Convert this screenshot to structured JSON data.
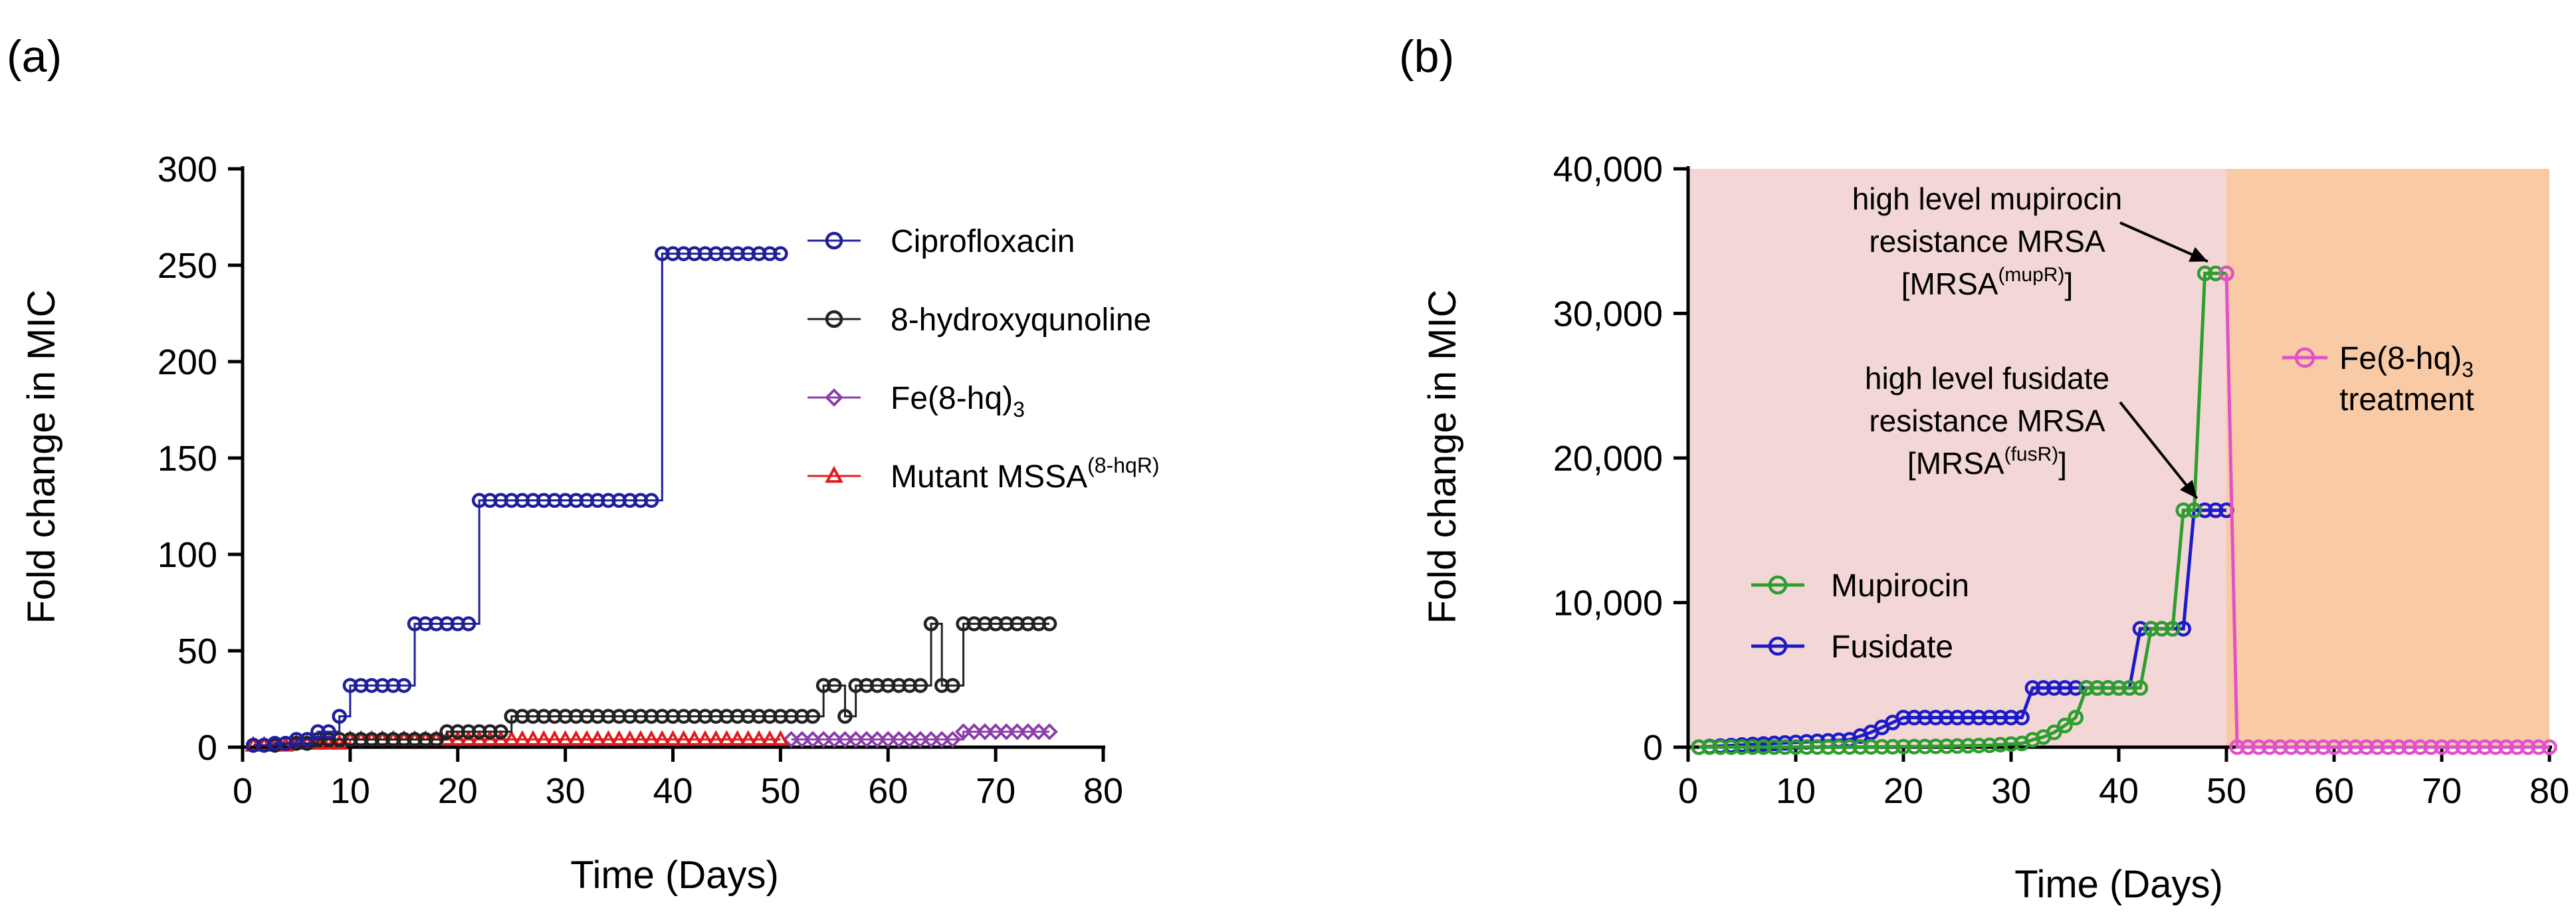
{
  "panels": {
    "a": {
      "label": "(a)"
    },
    "b": {
      "label": "(b)"
    }
  },
  "chart_data": [
    {
      "type": "line",
      "panel": "(a)",
      "xlabel": "Time (Days)",
      "ylabel": "Fold change in MIC",
      "xlim": [
        0,
        80
      ],
      "ylim": [
        0,
        300
      ],
      "xticks": [
        "0",
        "10",
        "20",
        "30",
        "40",
        "50",
        "60",
        "70",
        "80"
      ],
      "yticks": [
        "0",
        "50",
        "100",
        "150",
        "200",
        "250",
        "300"
      ],
      "legend_position": "top-right",
      "series": [
        {
          "name": "Ciprofloxacin",
          "color": "#1f1f9c",
          "marker": "circle",
          "steps": [
            [
              1,
              1
            ],
            [
              3,
              2
            ],
            [
              5,
              4
            ],
            [
              7,
              8
            ],
            [
              9,
              16
            ],
            [
              10,
              32
            ],
            [
              16,
              64
            ],
            [
              22,
              128
            ],
            [
              39,
              256
            ],
            [
              50,
              256
            ]
          ]
        },
        {
          "name": "8-hydroxyqunoline",
          "color": "#222222",
          "marker": "circle",
          "steps": [
            [
              1,
              1
            ],
            [
              4,
              2
            ],
            [
              7,
              4
            ],
            [
              19,
              8
            ],
            [
              25,
              16
            ],
            [
              54,
              32
            ],
            [
              56,
              16
            ],
            [
              57,
              32
            ],
            [
              64,
              64
            ],
            [
              65,
              32
            ],
            [
              67,
              64
            ],
            [
              75,
              64
            ]
          ]
        },
        {
          "name": "Fe(8-hq)3",
          "name_main": "Fe(8-hq)",
          "name_sub": "3",
          "color": "#8b3fa8",
          "marker": "diamond",
          "steps": [
            [
              51,
              4
            ],
            [
              67,
              8
            ],
            [
              75,
              8
            ]
          ]
        },
        {
          "name": "Mutant MSSA(8-hqR)",
          "name_main": "Mutant MSSA",
          "name_sup": "(8-hqR)",
          "color": "#e31a1c",
          "marker": "triangle",
          "steps": [
            [
              1,
              1
            ],
            [
              5,
              2
            ],
            [
              10,
              4
            ],
            [
              50,
              4
            ]
          ]
        }
      ]
    },
    {
      "type": "line",
      "panel": "(b)",
      "xlabel": "Time (Days)",
      "ylabel": "Fold change in MIC",
      "xlim": [
        0,
        80
      ],
      "ylim": [
        0,
        40000
      ],
      "xticks": [
        "0",
        "10",
        "20",
        "30",
        "40",
        "50",
        "60",
        "70",
        "80"
      ],
      "yticks": [
        "0",
        "10,000",
        "20,000",
        "30,000",
        "40,000"
      ],
      "shaded_regions": [
        {
          "from": 0,
          "to": 50,
          "color": "#f3d6d6"
        },
        {
          "from": 50,
          "to": 80,
          "color": "#f8caa6"
        }
      ],
      "series": [
        {
          "name": "Mupirocin",
          "color": "#2e9e2e",
          "marker": "circle",
          "points": [
            [
              1,
              1
            ],
            [
              4,
              2
            ],
            [
              8,
              4
            ],
            [
              12,
              8
            ],
            [
              16,
              16
            ],
            [
              20,
              32
            ],
            [
              24,
              64
            ],
            [
              28,
              128
            ],
            [
              31,
              256
            ],
            [
              32,
              512
            ],
            [
              33,
              700
            ],
            [
              34,
              1024
            ],
            [
              35,
              1500
            ],
            [
              36,
              2048
            ],
            [
              37,
              4096
            ],
            [
              41,
              4096
            ],
            [
              42,
              4096
            ],
            [
              43,
              8192
            ],
            [
              45,
              8192
            ],
            [
              46,
              16384
            ],
            [
              47,
              16384
            ],
            [
              48,
              32768
            ],
            [
              49,
              32768
            ],
            [
              50,
              32768
            ]
          ]
        },
        {
          "name": "Fusidate",
          "color": "#1c1cc7",
          "marker": "circle",
          "points": [
            [
              1,
              1
            ],
            [
              8,
              256
            ],
            [
              15,
              512
            ],
            [
              17,
              1024
            ],
            [
              20,
              2048
            ],
            [
              31,
              2048
            ],
            [
              32,
              4096
            ],
            [
              41,
              4096
            ],
            [
              42,
              8192
            ],
            [
              46,
              8192
            ],
            [
              47,
              16384
            ],
            [
              50,
              16384
            ]
          ]
        },
        {
          "name": "Fe(8-hq)3 treatment",
          "color": "#e052c8",
          "marker": "circle",
          "points": [
            [
              50,
              32768
            ],
            [
              51,
              0
            ],
            [
              80,
              0
            ]
          ]
        }
      ],
      "legend": [
        {
          "name": "Mupirocin"
        },
        {
          "name": "Fusidate"
        }
      ],
      "annotations": [
        {
          "lines": [
            "high level mupirocin",
            "resistance MRSA"
          ],
          "line3_main": "[MRSA",
          "line3_sup": "(mupR)",
          "line3_end": "]",
          "target": [
            49,
            32768
          ]
        },
        {
          "lines": [
            "high level fusidate",
            "resistance MRSA"
          ],
          "line3_main": "[MRSA",
          "line3_sup": "(fusR)",
          "line3_end": "]",
          "target": [
            48,
            16384
          ]
        },
        {
          "text_main": "Fe(8-hq)",
          "text_sub": "3",
          "text_line2": "treatment"
        }
      ]
    }
  ]
}
